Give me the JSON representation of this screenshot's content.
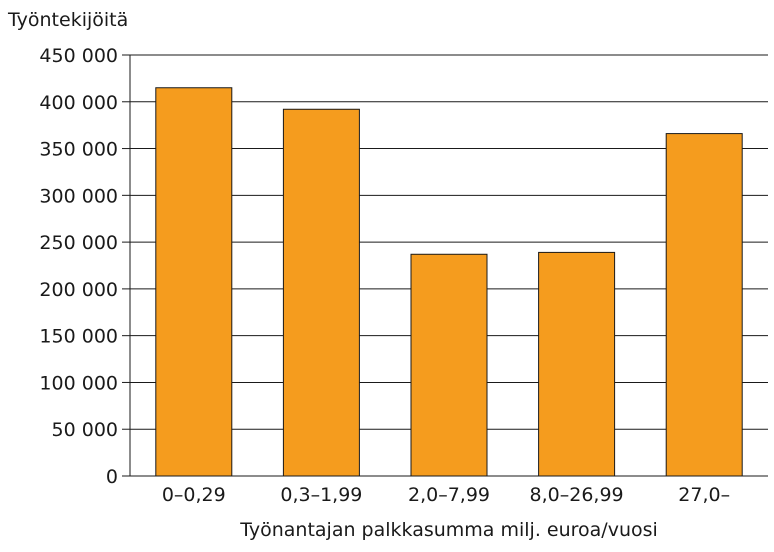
{
  "chart_data": {
    "type": "bar",
    "title": "",
    "ylabel": "Työntekijöitä",
    "xlabel": "Työnantajan palkkasumma milj. euroa/vuosi",
    "categories": [
      "0–0,29",
      "0,3–1,99",
      "2,0–7,99",
      "8,0–26,99",
      "27,0–"
    ],
    "values": [
      415000,
      392000,
      237000,
      239000,
      366000
    ],
    "ylim": [
      0,
      450000
    ],
    "yticks": [
      0,
      50000,
      100000,
      150000,
      200000,
      250000,
      300000,
      350000,
      400000,
      450000
    ],
    "ytick_labels": [
      "0",
      "50 000",
      "100 000",
      "150 000",
      "200 000",
      "250 000",
      "300 000",
      "350 000",
      "400 000",
      "450 000"
    ],
    "grid": true,
    "legend": "none",
    "colors": {
      "bar": "#f59c1e",
      "bar_stroke": "#1a1a1a",
      "grid": "#1a1a1a"
    }
  }
}
